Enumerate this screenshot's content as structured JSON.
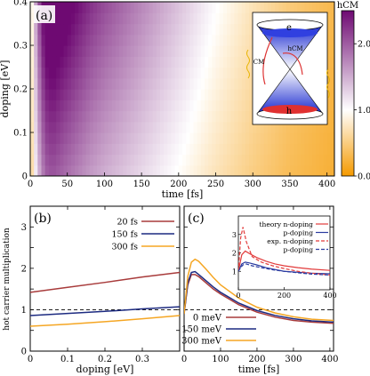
{
  "chart_data": [
    {
      "panel": "(a)",
      "type": "heatmap",
      "xlabel": "time [fs]",
      "ylabel": "doping [eV]",
      "xlim": [
        0,
        410
      ],
      "ylim": [
        0,
        0.4
      ],
      "xticks": [
        0,
        50,
        100,
        150,
        200,
        250,
        300,
        350,
        400
      ],
      "yticks": [
        0,
        0.1,
        0.2,
        0.3,
        0.4
      ],
      "colorbar": {
        "label": "hCM",
        "range": [
          0,
          2.5
        ],
        "ticks": [
          0.0,
          1.0,
          2.0
        ],
        "low_color": "#f59a00",
        "mid_color": "#ffffff",
        "high_color": "#6e0a72"
      },
      "time_profile": {
        "t": [
          0,
          10,
          20,
          30,
          40,
          60,
          80,
          100,
          125,
          150,
          175,
          200,
          225,
          250,
          300,
          350,
          410
        ],
        "hcm": [
          0.5,
          1.6,
          2.3,
          2.4,
          2.3,
          2.1,
          1.9,
          1.75,
          1.6,
          1.45,
          1.3,
          1.15,
          1.0,
          0.85,
          0.6,
          0.4,
          0.25
        ]
      },
      "doping_factor": {
        "doping": [
          0,
          0.4
        ],
        "factor": [
          0.85,
          1.2
        ]
      },
      "inset_labels": {
        "electron": "e",
        "hole": "h",
        "cm": "CM",
        "hcm": "hCM"
      }
    },
    {
      "panel": "(b)",
      "type": "line",
      "xlabel": "doping [eV]",
      "ylabel": "hot carrier multiplication",
      "xlim": [
        0,
        0.4
      ],
      "ylim": [
        0,
        3.5
      ],
      "xticks": [
        0,
        0.1,
        0.2,
        0.3
      ],
      "yticks": [
        0,
        0.5,
        1,
        1.5,
        2,
        2.5,
        3
      ],
      "reference_line": 1.0,
      "legend": "top-right",
      "x": [
        0,
        0.1,
        0.2,
        0.3,
        0.4
      ],
      "series": [
        {
          "name": "20 fs",
          "color": "#a83b3b",
          "values": [
            1.42,
            1.54,
            1.66,
            1.79,
            1.9
          ]
        },
        {
          "name": "150 fs",
          "color": "#1c2a80",
          "values": [
            0.86,
            0.91,
            0.96,
            1.02,
            1.07
          ]
        },
        {
          "name": "300 fs",
          "color": "#f5a623",
          "values": [
            0.6,
            0.65,
            0.71,
            0.78,
            0.86
          ]
        }
      ]
    },
    {
      "panel": "(c)",
      "type": "line",
      "xlabel": "time [fs]",
      "xlim": [
        0,
        410
      ],
      "ylim": [
        0,
        3.5
      ],
      "xticks": [
        0,
        100,
        200,
        300,
        400
      ],
      "reference_line": 1.0,
      "legend": "bottom-left",
      "series": [
        {
          "name": "0 meV",
          "color": "#a83b3b",
          "x": [
            0,
            10,
            20,
            30,
            40,
            60,
            80,
            100,
            150,
            200,
            250,
            300,
            350,
            410
          ],
          "values": [
            0.9,
            1.6,
            1.85,
            1.85,
            1.8,
            1.65,
            1.5,
            1.38,
            1.12,
            0.94,
            0.82,
            0.74,
            0.7,
            0.67
          ]
        },
        {
          "name": "150 meV",
          "color": "#1c2a80",
          "x": [
            0,
            10,
            20,
            30,
            40,
            60,
            80,
            100,
            150,
            200,
            250,
            300,
            350,
            410
          ],
          "values": [
            0.9,
            1.65,
            1.9,
            1.92,
            1.85,
            1.7,
            1.55,
            1.42,
            1.16,
            0.98,
            0.86,
            0.78,
            0.73,
            0.7
          ]
        },
        {
          "name": "300 meV",
          "color": "#f5a623",
          "x": [
            0,
            10,
            20,
            30,
            40,
            60,
            80,
            100,
            150,
            200,
            250,
            300,
            350,
            410
          ],
          "values": [
            0.9,
            1.8,
            2.15,
            2.22,
            2.17,
            1.98,
            1.78,
            1.6,
            1.28,
            1.06,
            0.92,
            0.83,
            0.77,
            0.74
          ]
        }
      ],
      "inset": {
        "xlim": [
          0,
          400
        ],
        "ylim": [
          0,
          4
        ],
        "xticks": [
          0,
          200,
          400
        ],
        "yticks": [
          1,
          2,
          3
        ],
        "legend_title_theory": "theory",
        "legend_title_exp": "exp.",
        "series": [
          {
            "group": "theory",
            "name": "n-doping",
            "color": "#e23b3b",
            "dash": "solid",
            "x": [
              0,
              15,
              30,
              50,
              80,
              120,
              160,
              200,
              260,
              320,
              400
            ],
            "values": [
              1.0,
              1.9,
              2.1,
              1.95,
              1.75,
              1.55,
              1.4,
              1.3,
              1.2,
              1.12,
              1.05
            ]
          },
          {
            "group": "theory",
            "name": "p-doping",
            "color": "#2a3ba0",
            "dash": "solid",
            "x": [
              0,
              15,
              30,
              50,
              80,
              120,
              160,
              200,
              260,
              320,
              400
            ],
            "values": [
              1.0,
              1.4,
              1.5,
              1.45,
              1.35,
              1.2,
              1.1,
              1.0,
              0.95,
              0.9,
              0.87
            ]
          },
          {
            "group": "exp",
            "name": "n-doping",
            "color": "#e23b3b",
            "dash": "dashed",
            "x": [
              0,
              10,
              20,
              35,
              60,
              100,
              150,
              200,
              260,
              320,
              400
            ],
            "values": [
              1.0,
              2.8,
              3.4,
              2.6,
              1.8,
              1.5,
              1.3,
              1.15,
              1.0,
              0.9,
              0.8
            ]
          },
          {
            "group": "exp",
            "name": "p-doping",
            "color": "#2a3ba0",
            "dash": "dashed",
            "x": [
              0,
              10,
              20,
              35,
              60,
              100,
              150,
              200,
              260,
              320,
              400
            ],
            "values": [
              1.0,
              1.2,
              1.35,
              1.4,
              1.3,
              1.2,
              1.08,
              1.0,
              0.92,
              0.85,
              0.8
            ]
          }
        ]
      }
    }
  ]
}
